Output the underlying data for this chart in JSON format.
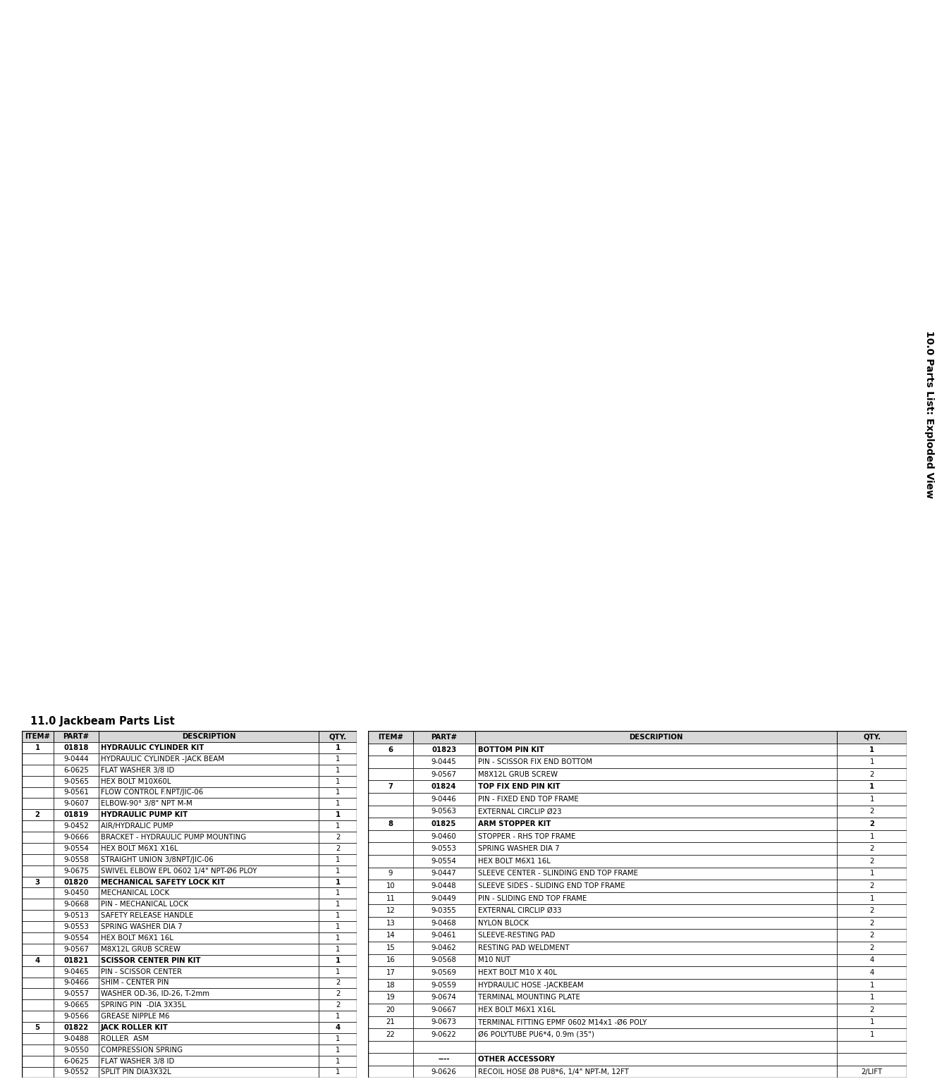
{
  "title_section": "10.0 Parts List: Exploded View",
  "parts_list_title": "11.0 Jackbeam Parts List",
  "background_color": "#ffffff",
  "left_table": {
    "headers": [
      "ITEM#",
      "PART#",
      "DESCRIPTION",
      "QTY."
    ],
    "rows": [
      [
        "1",
        "01818",
        "HYDRAULIC CYLINDER KIT",
        "1",
        "bold"
      ],
      [
        "",
        "9-0444",
        "HYDRAULIC CYLINDER -JACK BEAM",
        "1",
        "normal"
      ],
      [
        "",
        "6-0625",
        "FLAT WASHER 3/8 ID",
        "1",
        "normal"
      ],
      [
        "",
        "9-0565",
        "HEX BOLT M10X60L",
        "1",
        "normal"
      ],
      [
        "",
        "9-0561",
        "FLOW CONTROL F.NPT/JIC-06",
        "1",
        "normal"
      ],
      [
        "",
        "9-0607",
        "ELBOW-90° 3/8\" NPT M-M",
        "1",
        "normal"
      ],
      [
        "2",
        "01819",
        "HYDRAULIC PUMP KIT",
        "1",
        "bold"
      ],
      [
        "",
        "9-0452",
        "AIR/HYDRALIC PUMP",
        "1",
        "normal"
      ],
      [
        "",
        "9-0666",
        "BRACKET - HYDRAULIC PUMP MOUNTING",
        "2",
        "normal"
      ],
      [
        "",
        "9-0554",
        "HEX BOLT M6X1 X16L",
        "2",
        "normal"
      ],
      [
        "",
        "9-0558",
        "STRAIGHT UNION 3/8NPT/JIC-06",
        "1",
        "normal"
      ],
      [
        "",
        "9-0675",
        "SWIVEL ELBOW EPL 0602 1/4\" NPT-Ø6 PLOY",
        "1",
        "normal"
      ],
      [
        "3",
        "01820",
        "MECHANICAL SAFETY LOCK KIT",
        "1",
        "bold"
      ],
      [
        "",
        "9-0450",
        "MECHANICAL LOCK",
        "1",
        "normal"
      ],
      [
        "",
        "9-0668",
        "PIN - MECHANICAL LOCK",
        "1",
        "normal"
      ],
      [
        "",
        "9-0513",
        "SAFETY RELEASE HANDLE",
        "1",
        "normal"
      ],
      [
        "",
        "9-0553",
        "SPRING WASHER DIA 7",
        "1",
        "normal"
      ],
      [
        "",
        "9-0554",
        "HEX BOLT M6X1 16L",
        "1",
        "normal"
      ],
      [
        "",
        "9-0567",
        "M8X12L GRUB SCREW",
        "1",
        "normal"
      ],
      [
        "4",
        "01821",
        "SCISSOR CENTER PIN KIT",
        "1",
        "bold"
      ],
      [
        "",
        "9-0465",
        "PIN - SCISSOR CENTER",
        "1",
        "normal"
      ],
      [
        "",
        "9-0466",
        "SHIM - CENTER PIN",
        "2",
        "normal"
      ],
      [
        "",
        "9-0557",
        "WASHER OD-36, ID-26, T-2mm",
        "2",
        "normal"
      ],
      [
        "",
        "9-0665",
        "SPRING PIN  -DIA 3X35L",
        "2",
        "normal"
      ],
      [
        "",
        "9-0566",
        "GREASE NIPPLE M6",
        "1",
        "normal"
      ],
      [
        "5",
        "01822",
        "JACK ROLLER KIT",
        "4",
        "bold"
      ],
      [
        "",
        "9-0488",
        "ROLLER  ASM",
        "1",
        "normal"
      ],
      [
        "",
        "9-0550",
        "COMPRESSION SPRING",
        "1",
        "normal"
      ],
      [
        "",
        "6-0625",
        "FLAT WASHER 3/8 ID",
        "1",
        "normal"
      ],
      [
        "",
        "9-0552",
        "SPLIT PIN DIA3X32L",
        "1",
        "normal"
      ]
    ]
  },
  "right_table": {
    "headers": [
      "ITEM#",
      "PART#",
      "DESCRIPTION",
      "QTY."
    ],
    "rows": [
      [
        "6",
        "01823",
        "BOTTOM PIN KIT",
        "1",
        "bold"
      ],
      [
        "",
        "9-0445",
        "PIN - SCISSOR FIX END BOTTOM",
        "1",
        "normal"
      ],
      [
        "",
        "9-0567",
        "M8X12L GRUB SCREW",
        "2",
        "normal"
      ],
      [
        "7",
        "01824",
        "TOP FIX END PIN KIT",
        "1",
        "bold"
      ],
      [
        "",
        "9-0446",
        "PIN - FIXED END TOP FRAME",
        "1",
        "normal"
      ],
      [
        "",
        "9-0563",
        "EXTERNAL CIRCLIP Ø23",
        "2",
        "normal"
      ],
      [
        "8",
        "01825",
        "ARM STOPPER KIT",
        "2",
        "bold"
      ],
      [
        "",
        "9-0460",
        "STOPPER - RHS TOP FRAME",
        "1",
        "normal"
      ],
      [
        "",
        "9-0553",
        "SPRING WASHER DIA 7",
        "2",
        "normal"
      ],
      [
        "",
        "9-0554",
        "HEX BOLT M6X1 16L",
        "2",
        "normal"
      ],
      [
        "9",
        "9-0447",
        "SLEEVE CENTER - SLINDING END TOP FRAME",
        "1",
        "normal"
      ],
      [
        "10",
        "9-0448",
        "SLEEVE SIDES - SLIDING END TOP FRAME",
        "2",
        "normal"
      ],
      [
        "11",
        "9-0449",
        "PIN - SLIDING END TOP FRAME",
        "1",
        "normal"
      ],
      [
        "12",
        "9-0355",
        "EXTERNAL CIRCLIP Ø33",
        "2",
        "normal"
      ],
      [
        "13",
        "9-0468",
        "NYLON BLOCK",
        "2",
        "normal"
      ],
      [
        "14",
        "9-0461",
        "SLEEVE-RESTING PAD",
        "2",
        "normal"
      ],
      [
        "15",
        "9-0462",
        "RESTING PAD WELDMENT",
        "2",
        "normal"
      ],
      [
        "16",
        "9-0568",
        "M10 NUT",
        "4",
        "normal"
      ],
      [
        "17",
        "9-0569",
        "HEXT BOLT M10 X 40L",
        "4",
        "normal"
      ],
      [
        "18",
        "9-0559",
        "HYDRAULIC HOSE -JACKBEAM",
        "1",
        "normal"
      ],
      [
        "19",
        "9-0674",
        "TERMINAL MOUNTING PLATE",
        "1",
        "normal"
      ],
      [
        "20",
        "9-0667",
        "HEX BOLT M6X1 X16L",
        "2",
        "normal"
      ],
      [
        "21",
        "9-0673",
        "TERMINAL FITTING EPMF 0602 M14x1 -Ø6 POLY",
        "1",
        "normal"
      ],
      [
        "22",
        "9-0622",
        "Ø6 POLYTUBE PU6*4, 0.9m (35\")",
        "1",
        "normal"
      ],
      [
        "",
        "",
        "",
        "",
        "normal"
      ],
      [
        "",
        "----",
        "OTHER ACCESSORY",
        "",
        "bold"
      ],
      [
        "",
        "9-0626",
        "RECOIL HOSE Ø8 PU8*6, 1/4\" NPT-M, 12FT",
        "2/LIFT",
        "normal"
      ]
    ]
  }
}
